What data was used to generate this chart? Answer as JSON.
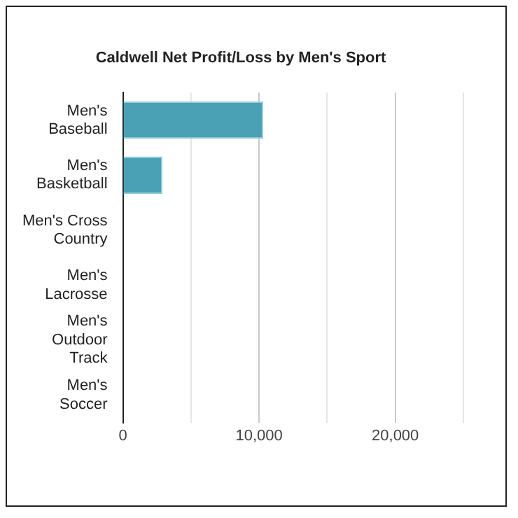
{
  "chart_data": {
    "type": "bar",
    "orientation": "horizontal",
    "title": "Caldwell Net Profit/Loss by Men's Sport",
    "categories": [
      "Men's Baseball",
      "Men's Basketball",
      "Men's Cross Country",
      "Men's Lacrosse",
      "Men's Outdoor Track",
      "Men's Soccer"
    ],
    "values": [
      10300,
      2900,
      0,
      0,
      0,
      0
    ],
    "color": "#4aa0b5",
    "xlim": [
      0,
      25000
    ],
    "xticks": [
      0,
      {
        "value": 5000,
        "label": null
      },
      {
        "value": 10000,
        "label": "10,000"
      },
      {
        "value": 15000,
        "label": null
      },
      {
        "value": 20000,
        "label": "20,000"
      },
      {
        "value": 25000,
        "label": null
      }
    ],
    "grid": "x",
    "legend": false
  }
}
